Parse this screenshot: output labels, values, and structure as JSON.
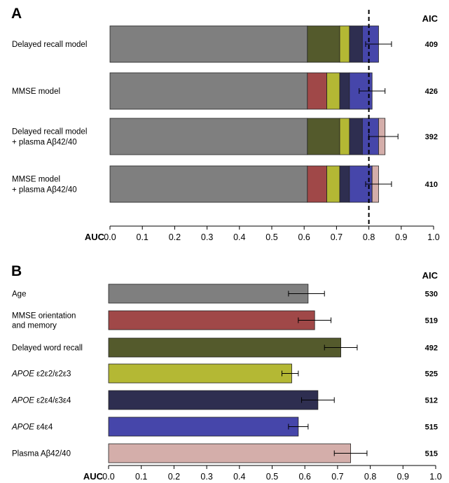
{
  "chart_data": [
    {
      "panel": "A",
      "type": "bar",
      "stacked": true,
      "orientation": "horizontal",
      "xlabel": "AUC",
      "xlim": [
        0.0,
        1.0
      ],
      "xticks": [
        "0.0",
        "0.1",
        "0.2",
        "0.3",
        "0.4",
        "0.5",
        "0.6",
        "0.7",
        "0.8",
        "0.9",
        "1.0"
      ],
      "reference_line": 0.8,
      "aic_header": "AIC",
      "series_colors": {
        "age": "#7f7f7f",
        "mmse_orientation_memory": "#a04848",
        "delayed_word_recall": "#545a2c",
        "apoe_e2e2_e2e3": "#b4b834",
        "apoe_e2e4_e3e4": "#2e2e50",
        "apoe_e4e4": "#4646aa",
        "plasma_ab42_40": "#d4aeaa"
      },
      "rows": [
        {
          "label_lines": [
            "Delayed recall model"
          ],
          "aic": "409",
          "segments": [
            {
              "component": "age",
              "end": 0.61
            },
            {
              "component": "delayed_word_recall",
              "end": 0.71
            },
            {
              "component": "apoe_e2e2_e2e3",
              "end": 0.74
            },
            {
              "component": "apoe_e2e4_e3e4",
              "end": 0.78
            },
            {
              "component": "apoe_e4e4",
              "end": 0.83
            }
          ],
          "auc": 0.83,
          "ci": [
            0.79,
            0.87
          ]
        },
        {
          "label_lines": [
            "MMSE model"
          ],
          "aic": "426",
          "segments": [
            {
              "component": "age",
              "end": 0.61
            },
            {
              "component": "mmse_orientation_memory",
              "end": 0.67
            },
            {
              "component": "apoe_e2e2_e2e3",
              "end": 0.71
            },
            {
              "component": "apoe_e2e4_e3e4",
              "end": 0.74
            },
            {
              "component": "apoe_e4e4",
              "end": 0.81
            }
          ],
          "auc": 0.81,
          "ci": [
            0.77,
            0.85
          ]
        },
        {
          "label_lines": [
            "Delayed recall model",
            "+ plasma Aβ42/40"
          ],
          "aic": "392",
          "segments": [
            {
              "component": "age",
              "end": 0.61
            },
            {
              "component": "delayed_word_recall",
              "end": 0.71
            },
            {
              "component": "apoe_e2e2_e2e3",
              "end": 0.74
            },
            {
              "component": "apoe_e2e4_e3e4",
              "end": 0.78
            },
            {
              "component": "apoe_e4e4",
              "end": 0.83
            },
            {
              "component": "plasma_ab42_40",
              "end": 0.85
            }
          ],
          "auc": 0.85,
          "ci": [
            0.8,
            0.89
          ]
        },
        {
          "label_lines": [
            "MMSE model",
            "+ plasma Aβ42/40"
          ],
          "aic": "410",
          "segments": [
            {
              "component": "age",
              "end": 0.61
            },
            {
              "component": "mmse_orientation_memory",
              "end": 0.67
            },
            {
              "component": "apoe_e2e2_e2e3",
              "end": 0.71
            },
            {
              "component": "apoe_e2e4_e3e4",
              "end": 0.74
            },
            {
              "component": "apoe_e4e4",
              "end": 0.81
            },
            {
              "component": "plasma_ab42_40",
              "end": 0.83
            }
          ],
          "auc": 0.83,
          "ci": [
            0.79,
            0.87
          ]
        }
      ]
    },
    {
      "panel": "B",
      "type": "bar",
      "orientation": "horizontal",
      "xlabel": "AUC",
      "xlim": [
        0.0,
        1.0
      ],
      "xticks": [
        "0.0",
        "0.1",
        "0.2",
        "0.3",
        "0.4",
        "0.5",
        "0.6",
        "0.7",
        "0.8",
        "0.9",
        "1.0"
      ],
      "aic_header": "AIC",
      "rows": [
        {
          "label_lines": [
            [
              {
                "t": "Age"
              }
            ]
          ],
          "aic": "530",
          "auc": 0.61,
          "ci": [
            0.55,
            0.66
          ],
          "color": "#7f7f7f"
        },
        {
          "label_lines": [
            [
              {
                "t": "MMSE orientation"
              }
            ],
            [
              {
                "t": "and memory"
              }
            ]
          ],
          "aic": "519",
          "auc": 0.63,
          "ci": [
            0.58,
            0.68
          ],
          "color": "#a04848"
        },
        {
          "label_lines": [
            [
              {
                "t": "Delayed word recall"
              }
            ]
          ],
          "aic": "492",
          "auc": 0.71,
          "ci": [
            0.66,
            0.76
          ],
          "color": "#545a2c"
        },
        {
          "label_lines": [
            [
              {
                "t": "APOE",
                "i": true
              },
              {
                "t": " ε2ε2/ε2ε3"
              }
            ]
          ],
          "aic": "525",
          "auc": 0.56,
          "ci": [
            0.53,
            0.58
          ],
          "color": "#b4b834"
        },
        {
          "label_lines": [
            [
              {
                "t": "APOE",
                "i": true
              },
              {
                "t": " ε2ε4/ε3ε4"
              }
            ]
          ],
          "aic": "512",
          "auc": 0.64,
          "ci": [
            0.59,
            0.69
          ],
          "color": "#2e2e50"
        },
        {
          "label_lines": [
            [
              {
                "t": "APOE",
                "i": true
              },
              {
                "t": " ε4ε4"
              }
            ]
          ],
          "aic": "515",
          "auc": 0.58,
          "ci": [
            0.55,
            0.61
          ],
          "color": "#4646aa"
        },
        {
          "label_lines": [
            [
              {
                "t": "Plasma Aβ42/40"
              }
            ]
          ],
          "aic": "515",
          "auc": 0.74,
          "ci": [
            0.69,
            0.79
          ],
          "color": "#d4aeaa"
        }
      ]
    }
  ],
  "panel_letters": {
    "a": "A",
    "b": "B"
  }
}
